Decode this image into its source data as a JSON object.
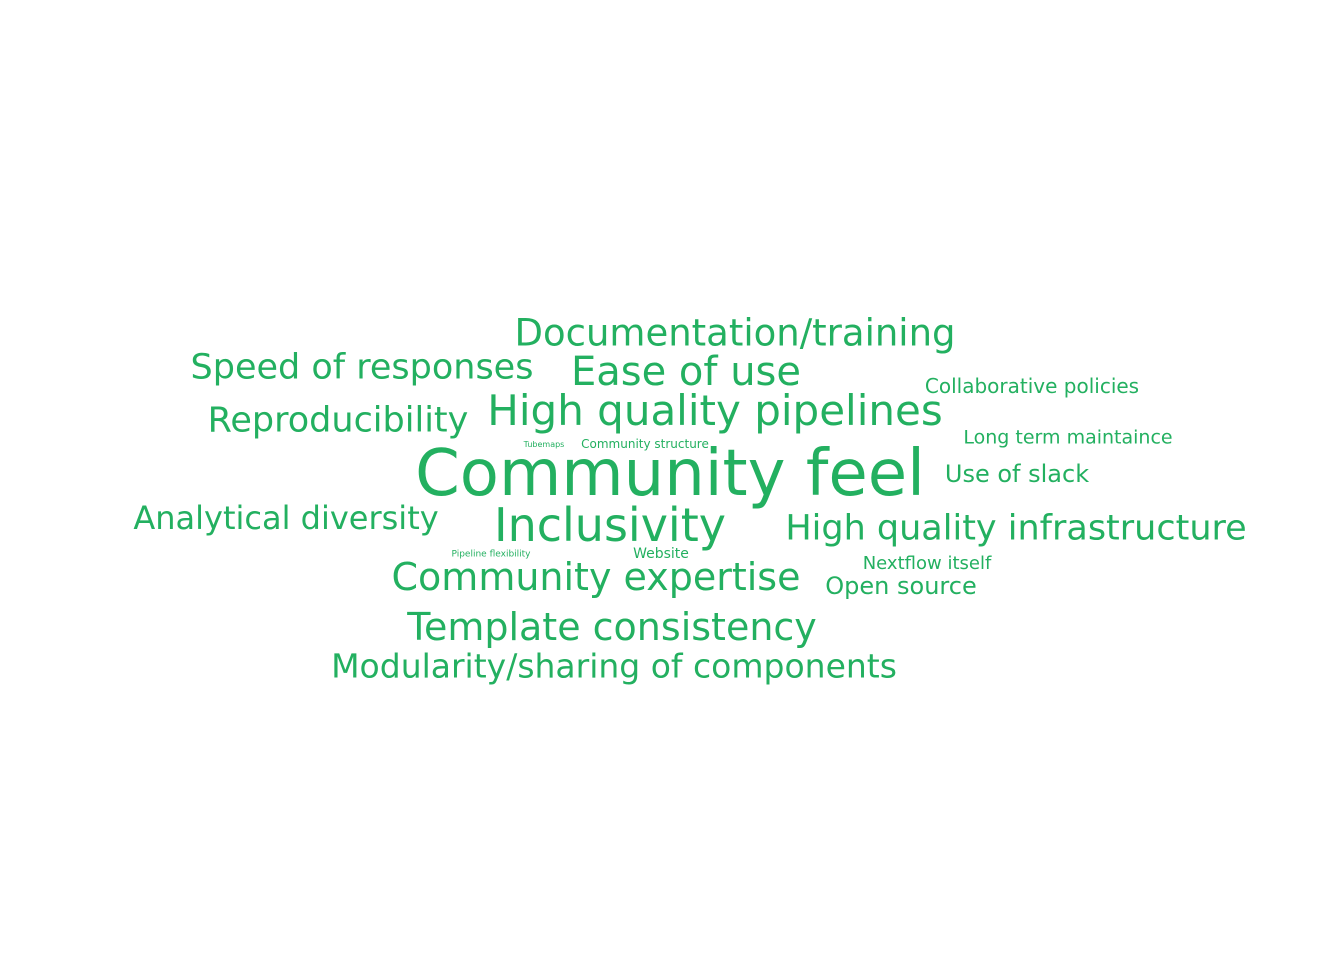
{
  "colors": {
    "background": "#ffffff",
    "word": "#23b060"
  },
  "words": [
    {
      "id": "community-feel",
      "text": "Community feel"
    },
    {
      "id": "documentation-training",
      "text": "Documentation/training"
    },
    {
      "id": "speed-of-responses",
      "text": "Speed of responses"
    },
    {
      "id": "ease-of-use",
      "text": "Ease of use"
    },
    {
      "id": "collaborative-policies",
      "text": "Collaborative policies"
    },
    {
      "id": "reproducibility",
      "text": "Reproducibility"
    },
    {
      "id": "high-quality-pipelines",
      "text": "High quality pipelines"
    },
    {
      "id": "tubemaps",
      "text": "Tubemaps"
    },
    {
      "id": "community-structure",
      "text": "Community structure"
    },
    {
      "id": "long-term-maintaince",
      "text": "Long term maintaince"
    },
    {
      "id": "use-of-slack",
      "text": "Use of slack"
    },
    {
      "id": "analytical-diversity",
      "text": "Analytical diversity"
    },
    {
      "id": "inclusivity",
      "text": "Inclusivity"
    },
    {
      "id": "high-quality-infrastructure",
      "text": "High quality infrastructure"
    },
    {
      "id": "pipeline-flexibility",
      "text": "Pipeline flexibility"
    },
    {
      "id": "website",
      "text": "Website"
    },
    {
      "id": "nextflow-itself",
      "text": "Nextflow itself"
    },
    {
      "id": "community-expertise",
      "text": "Community expertise"
    },
    {
      "id": "open-source",
      "text": "Open source"
    },
    {
      "id": "template-consistency",
      "text": "Template consistency"
    },
    {
      "id": "modularity-sharing",
      "text": "Modularity/sharing of components"
    }
  ]
}
